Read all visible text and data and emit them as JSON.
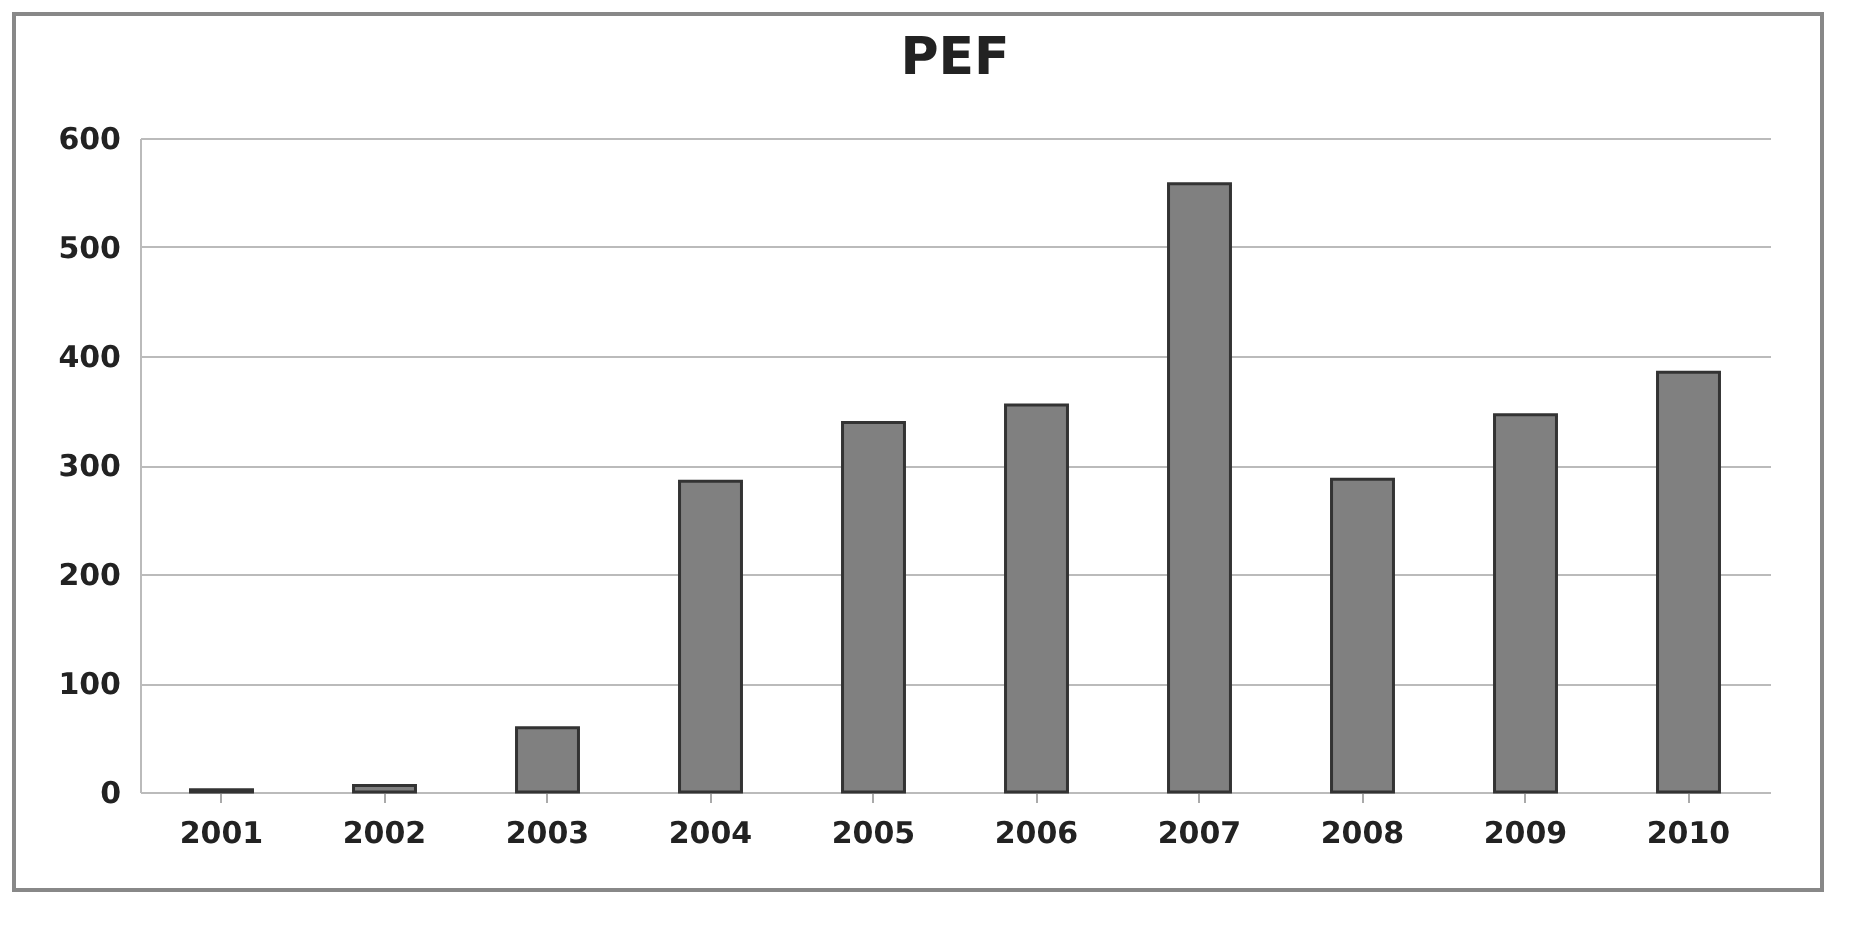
{
  "chart_data": {
    "type": "bar",
    "title": "PEF",
    "categories": [
      "2001",
      "2002",
      "2003",
      "2004",
      "2005",
      "2006",
      "2007",
      "2008",
      "2009",
      "2010"
    ],
    "values": [
      2,
      6,
      59,
      285,
      339,
      355,
      558,
      287,
      346,
      385
    ],
    "color": "#808080",
    "ylim": [
      0,
      600
    ],
    "yticks": [
      0,
      100,
      200,
      300,
      400,
      500,
      600
    ],
    "grid": "y"
  }
}
